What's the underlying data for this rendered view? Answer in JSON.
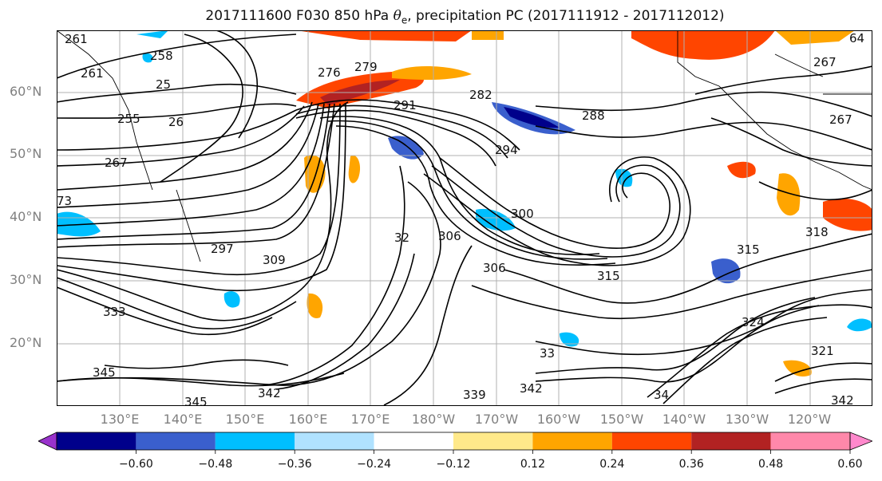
{
  "title": {
    "prefix": "2017111600 F030 850 hPa ",
    "symbol": "θ",
    "subscript": "e",
    "suffix": ", precipitation PC (2017111912 - 2017112012)"
  },
  "map": {
    "lat_labels": [
      "60°N",
      "50°N",
      "40°N",
      "30°N",
      "20°N"
    ],
    "lon_labels": [
      "130°E",
      "140°E",
      "150°E",
      "160°E",
      "170°E",
      "180°W",
      "170°W",
      "160°W",
      "150°W",
      "140°W",
      "130°W",
      "120°W"
    ],
    "contour_labels": [
      "261",
      "258",
      "25",
      "261",
      "255",
      "26",
      "267",
      "73",
      "276",
      "279",
      "282",
      "291",
      "294",
      "300",
      "288",
      "267",
      "297",
      "309",
      "32",
      "306",
      "306",
      "315",
      "315",
      "318",
      "324",
      "333",
      "345",
      "345",
      "342",
      "339",
      "342",
      "33",
      "34",
      "342",
      "321",
      "64",
      "267"
    ],
    "colors": {
      "contour": "#000000",
      "grid": "#b0b0b0",
      "coast": "#000000"
    }
  },
  "colorbar": {
    "tick_labels": [
      "−0.60",
      "−0.48",
      "−0.36",
      "−0.24",
      "−0.12",
      "0.12",
      "0.24",
      "0.36",
      "0.48",
      "0.60"
    ],
    "levels": [
      -0.72,
      -0.6,
      -0.48,
      -0.36,
      -0.24,
      -0.12,
      0.12,
      0.24,
      0.36,
      0.48,
      0.6,
      0.72
    ],
    "colors": [
      "#9932cc",
      "#00008b",
      "#3a5fcd",
      "#00bfff",
      "#b0e2ff",
      "#ffffff",
      "#ffe98a",
      "#ffa500",
      "#ff4500",
      "#b22222",
      "#ff88aa",
      "#ff88cc"
    ]
  }
}
